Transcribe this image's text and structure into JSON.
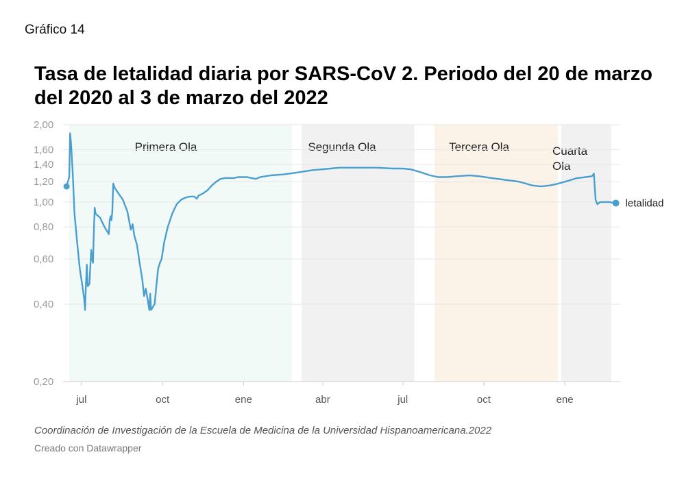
{
  "figure_label": "Gráfico 14",
  "source": "Coordinación de Investigación de la Escuela de Medicina de la Universidad Hispanoamericana.2022",
  "credit": "Creado con Datawrapper",
  "colors": {
    "line": "#4a9fcf",
    "grid": "#e6e6e6",
    "wave1": "#f1faf6",
    "wave2": "#f1f1f1",
    "wave3": "#fcf3e8",
    "wave4": "#f1f1f1"
  },
  "chart_data": {
    "type": "line",
    "title": "Tasa de letalidad diaria por SARS-CoV 2. Periodo del 20 de marzo del 2020 al 3 de marzo del 2022",
    "y_scale": "log",
    "ylim": [
      0.2,
      2.0
    ],
    "y_ticks": [
      {
        "value": 2.0,
        "label": "2,00"
      },
      {
        "value": 1.6,
        "label": "1,60"
      },
      {
        "value": 1.4,
        "label": "1,40"
      },
      {
        "value": 1.2,
        "label": "1,20"
      },
      {
        "value": 1.0,
        "label": "1,00"
      },
      {
        "value": 0.8,
        "label": "0,80"
      },
      {
        "value": 0.6,
        "label": "0,60"
      },
      {
        "value": 0.4,
        "label": "0,40"
      },
      {
        "value": 0.2,
        "label": "0,20"
      }
    ],
    "xlim": [
      "2020-06-10",
      "2022-03-05"
    ],
    "x_ticks": [
      {
        "date": "2020-07-01",
        "label": "jul"
      },
      {
        "date": "2020-10-01",
        "label": "oct"
      },
      {
        "date": "2021-01-01",
        "label": "ene"
      },
      {
        "date": "2021-04-01",
        "label": "abr"
      },
      {
        "date": "2021-07-01",
        "label": "jul"
      },
      {
        "date": "2021-10-01",
        "label": "oct"
      },
      {
        "date": "2022-01-01",
        "label": "ene"
      }
    ],
    "bands": [
      {
        "label": "Primera Ola",
        "start": "2020-06-17",
        "end": "2021-02-25",
        "color": "#f1faf6"
      },
      {
        "label": "Segunda Ola",
        "start": "2021-03-08",
        "end": "2021-07-14",
        "color": "#f1f1f1"
      },
      {
        "label": "Tercera Ola",
        "start": "2021-08-06",
        "end": "2021-12-24",
        "color": "#fcf3e8"
      },
      {
        "label": "Cuarta Ola",
        "start": "2021-12-28",
        "end": "2022-03-07",
        "color": "#f1f1f1"
      }
    ],
    "series": [
      {
        "name": "letalidad",
        "color": "#4a9fcf",
        "points": [
          [
            "2020-06-14",
            1.15
          ],
          [
            "2020-06-17",
            1.25
          ],
          [
            "2020-06-18",
            1.85
          ],
          [
            "2020-06-19",
            1.7
          ],
          [
            "2020-06-21",
            1.3
          ],
          [
            "2020-06-23",
            0.9
          ],
          [
            "2020-06-26",
            0.7
          ],
          [
            "2020-06-29",
            0.55
          ],
          [
            "2020-07-02",
            0.47
          ],
          [
            "2020-07-04",
            0.42
          ],
          [
            "2020-07-05",
            0.38
          ],
          [
            "2020-07-06",
            0.48
          ],
          [
            "2020-07-07",
            0.57
          ],
          [
            "2020-07-08",
            0.47
          ],
          [
            "2020-07-10",
            0.48
          ],
          [
            "2020-07-11",
            0.56
          ],
          [
            "2020-07-12",
            0.65
          ],
          [
            "2020-07-13",
            0.6
          ],
          [
            "2020-07-14",
            0.58
          ],
          [
            "2020-07-15",
            0.78
          ],
          [
            "2020-07-16",
            0.95
          ],
          [
            "2020-07-17",
            0.9
          ],
          [
            "2020-07-22",
            0.87
          ],
          [
            "2020-07-27",
            0.8
          ],
          [
            "2020-08-01",
            0.75
          ],
          [
            "2020-08-02",
            0.85
          ],
          [
            "2020-08-03",
            0.88
          ],
          [
            "2020-08-04",
            0.85
          ],
          [
            "2020-08-05",
            0.92
          ],
          [
            "2020-08-06",
            1.18
          ],
          [
            "2020-08-08",
            1.13
          ],
          [
            "2020-08-12",
            1.08
          ],
          [
            "2020-08-17",
            1.02
          ],
          [
            "2020-08-22",
            0.92
          ],
          [
            "2020-08-26",
            0.78
          ],
          [
            "2020-08-28",
            0.82
          ],
          [
            "2020-08-30",
            0.74
          ],
          [
            "2020-09-02",
            0.68
          ],
          [
            "2020-09-05",
            0.58
          ],
          [
            "2020-09-08",
            0.5
          ],
          [
            "2020-09-10",
            0.43
          ],
          [
            "2020-09-12",
            0.46
          ],
          [
            "2020-09-14",
            0.42
          ],
          [
            "2020-09-16",
            0.38
          ],
          [
            "2020-09-17",
            0.44
          ],
          [
            "2020-09-18",
            0.38
          ],
          [
            "2020-09-20",
            0.39
          ],
          [
            "2020-09-22",
            0.4
          ],
          [
            "2020-09-24",
            0.47
          ],
          [
            "2020-09-26",
            0.55
          ],
          [
            "2020-09-28",
            0.58
          ],
          [
            "2020-09-30",
            0.6
          ],
          [
            "2020-10-03",
            0.7
          ],
          [
            "2020-10-07",
            0.8
          ],
          [
            "2020-10-12",
            0.9
          ],
          [
            "2020-10-17",
            0.98
          ],
          [
            "2020-10-22",
            1.02
          ],
          [
            "2020-10-27",
            1.04
          ],
          [
            "2020-11-01",
            1.05
          ],
          [
            "2020-11-06",
            1.05
          ],
          [
            "2020-11-09",
            1.03
          ],
          [
            "2020-11-11",
            1.06
          ],
          [
            "2020-11-16",
            1.08
          ],
          [
            "2020-11-21",
            1.11
          ],
          [
            "2020-11-26",
            1.16
          ],
          [
            "2020-12-01",
            1.2
          ],
          [
            "2020-12-06",
            1.23
          ],
          [
            "2020-12-11",
            1.24
          ],
          [
            "2020-12-16",
            1.24
          ],
          [
            "2020-12-21",
            1.24
          ],
          [
            "2020-12-26",
            1.25
          ],
          [
            "2020-12-31",
            1.25
          ],
          [
            "2021-01-05",
            1.25
          ],
          [
            "2021-01-10",
            1.24
          ],
          [
            "2021-01-15",
            1.23
          ],
          [
            "2021-01-20",
            1.25
          ],
          [
            "2021-02-01",
            1.27
          ],
          [
            "2021-02-15",
            1.28
          ],
          [
            "2021-03-01",
            1.3
          ],
          [
            "2021-03-20",
            1.33
          ],
          [
            "2021-04-10",
            1.35
          ],
          [
            "2021-04-20",
            1.36
          ],
          [
            "2021-05-10",
            1.36
          ],
          [
            "2021-06-01",
            1.36
          ],
          [
            "2021-06-20",
            1.35
          ],
          [
            "2021-07-01",
            1.35
          ],
          [
            "2021-07-10",
            1.34
          ],
          [
            "2021-07-20",
            1.31
          ],
          [
            "2021-08-01",
            1.27
          ],
          [
            "2021-08-10",
            1.25
          ],
          [
            "2021-08-20",
            1.25
          ],
          [
            "2021-09-01",
            1.26
          ],
          [
            "2021-09-15",
            1.27
          ],
          [
            "2021-09-25",
            1.26
          ],
          [
            "2021-10-10",
            1.24
          ],
          [
            "2021-10-25",
            1.22
          ],
          [
            "2021-11-10",
            1.2
          ],
          [
            "2021-11-25",
            1.16
          ],
          [
            "2021-12-05",
            1.15
          ],
          [
            "2021-12-15",
            1.16
          ],
          [
            "2021-12-25",
            1.18
          ],
          [
            "2022-01-05",
            1.21
          ],
          [
            "2022-01-15",
            1.24
          ],
          [
            "2022-01-25",
            1.25
          ],
          [
            "2022-02-01",
            1.26
          ],
          [
            "2022-02-03",
            1.29
          ],
          [
            "2022-02-05",
            1.02
          ],
          [
            "2022-02-07",
            0.98
          ],
          [
            "2022-02-10",
            1.0
          ],
          [
            "2022-02-20",
            1.0
          ],
          [
            "2022-02-28",
            0.99
          ]
        ]
      }
    ]
  }
}
